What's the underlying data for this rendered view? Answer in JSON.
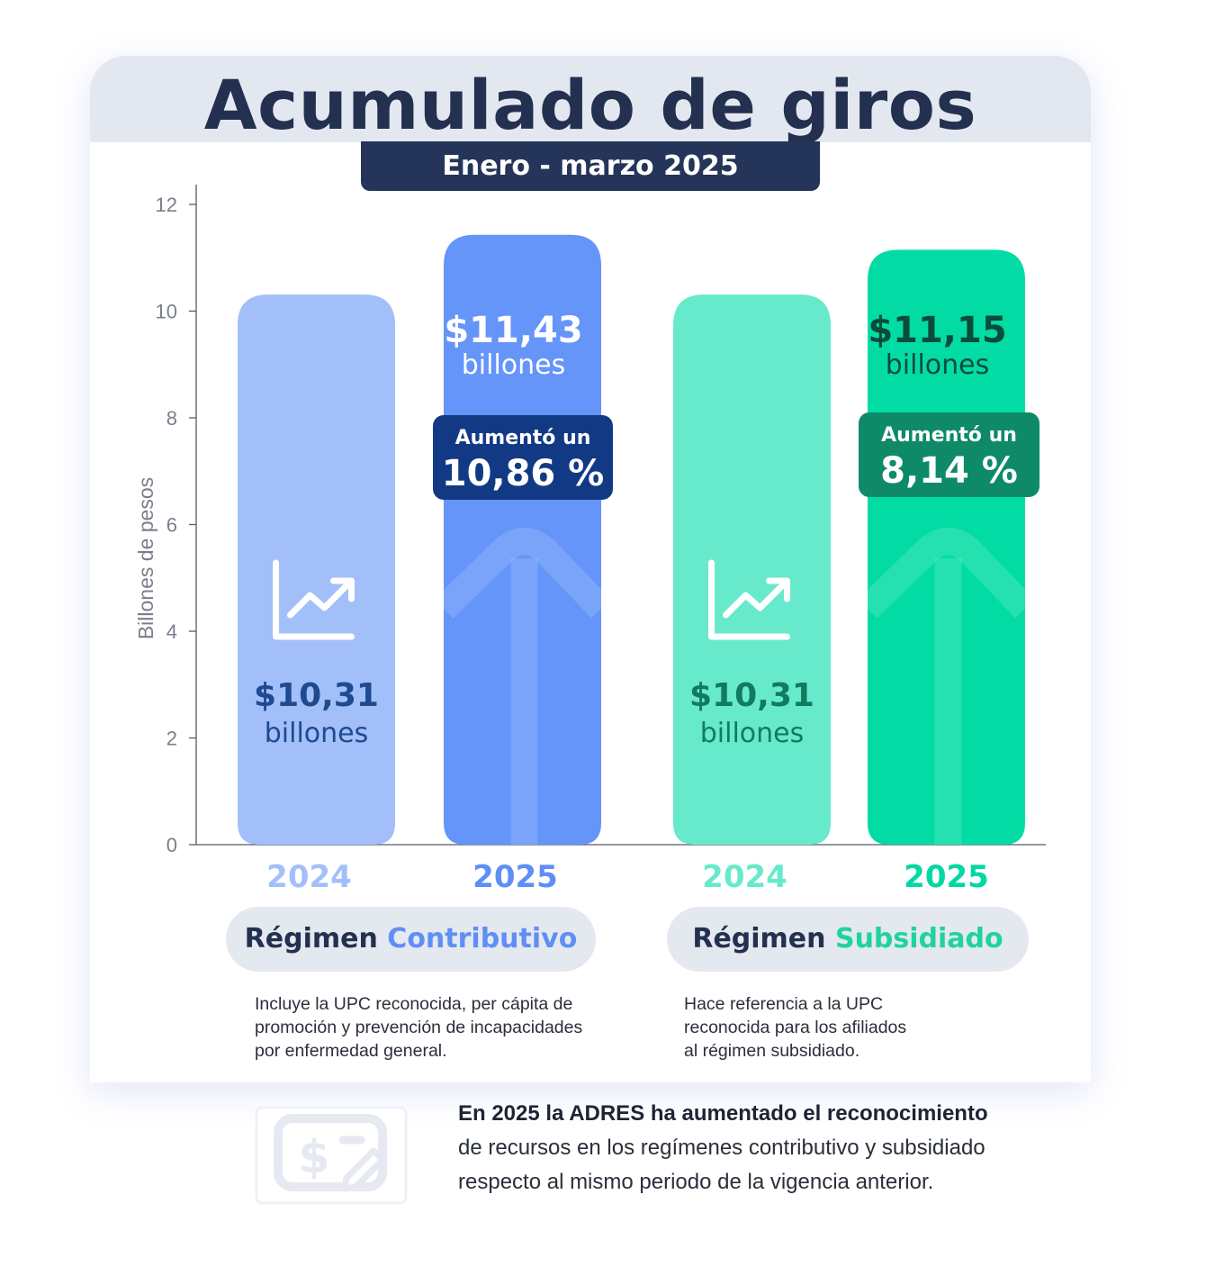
{
  "header": {
    "title": "Acumulado de giros",
    "subtitle": "Enero - marzo 2025"
  },
  "chart_data": {
    "type": "bar",
    "ylabel": "Billones de pesos",
    "ylim": [
      0,
      12
    ],
    "yticks": [
      0,
      2,
      4,
      6,
      8,
      10,
      12
    ],
    "categories": [
      "2024",
      "2025",
      "2024",
      "2025"
    ],
    "values": [
      10.31,
      11.43,
      10.31,
      11.15
    ],
    "bars": [
      {
        "year": "2024",
        "value": 10.31,
        "label_amount": "$10,31",
        "label_unit": "billones",
        "color": "#a2bff9",
        "label_color": "#1f4a8f",
        "year_color": "#a2bff9"
      },
      {
        "year": "2025",
        "value": 11.43,
        "label_amount": "$11,43",
        "label_unit": "billones",
        "color": "#6595f9",
        "label_color": "#ffffff",
        "year_color": "#5f8ef5",
        "badge_line1": "Aumentó un",
        "badge_line2": "10,86 %",
        "badge_color": "#123a84"
      },
      {
        "year": "2024",
        "value": 10.31,
        "label_amount": "$10,31",
        "label_unit": "billones",
        "color": "#67eacb",
        "label_color": "#117a5f",
        "year_color": "#67eacb"
      },
      {
        "year": "2025",
        "value": 11.15,
        "label_amount": "$11,15",
        "label_unit": "billones",
        "color": "#02dca4",
        "label_color": "#0b4b3c",
        "year_color": "#02d8a2",
        "badge_line1": "Aumentó un",
        "badge_line2": "8,14 %",
        "badge_color": "#0e8a68"
      }
    ]
  },
  "regimes": {
    "contributivo": {
      "prefix": "Régimen",
      "name": "Contributivo"
    },
    "subsidiado": {
      "prefix": "Régimen",
      "name": "Subsidiado"
    }
  },
  "notes": {
    "contributivo": "Incluye la UPC reconocida, per cápita de\npromoción y prevención de incapacidades\npor enfermedad general.",
    "subsidiado": "Hace referencia a la UPC\nreconocida para los afiliados\nal régimen subsidiado."
  },
  "footer": {
    "bold": "En 2025 la ADRES ha aumentado el reconocimiento",
    "rest": "de recursos en los regímenes contributivo y subsidiado respecto al mismo periodo de la vigencia anterior."
  },
  "icons": {
    "bar_icon": "chart-trend-up-icon",
    "footer_icon": "money-edit-icon"
  }
}
